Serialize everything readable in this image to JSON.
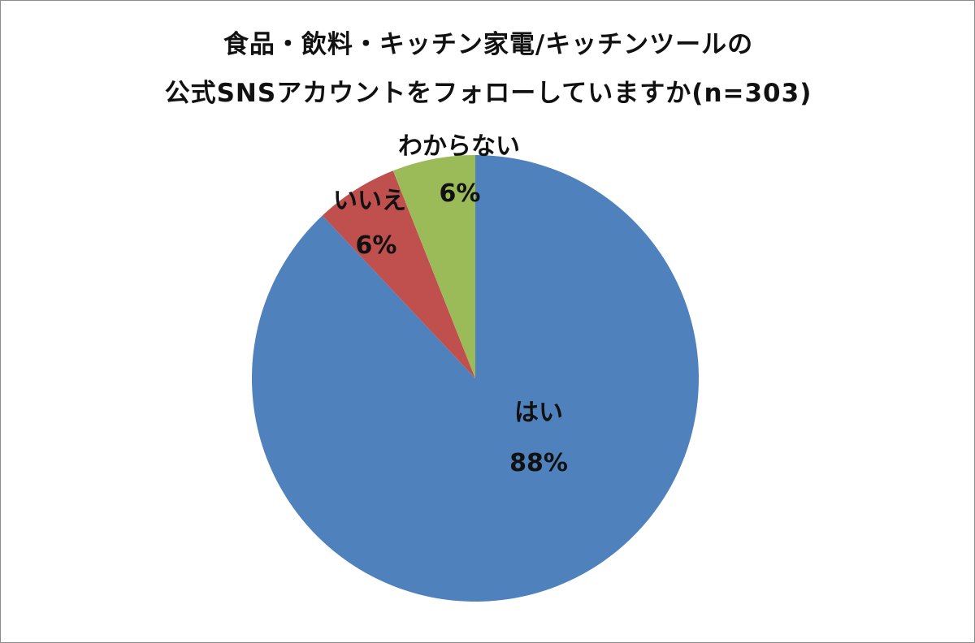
{
  "chart_data": {
    "type": "pie",
    "title_line1": "食品・飲料・キッチン家電/キッチンツールの",
    "title_line2": "公式SNSアカウントをフォローしていますか(n=303)",
    "slices": [
      {
        "label": "はい",
        "value": 88,
        "value_label": "88%",
        "color": "#4f81bd"
      },
      {
        "label": "いいえ",
        "value": 6,
        "value_label": "6%",
        "color": "#c0504d"
      },
      {
        "label": "わからない",
        "value": 6,
        "value_label": "6%",
        "color": "#9bbb59"
      }
    ],
    "legend": "none"
  }
}
